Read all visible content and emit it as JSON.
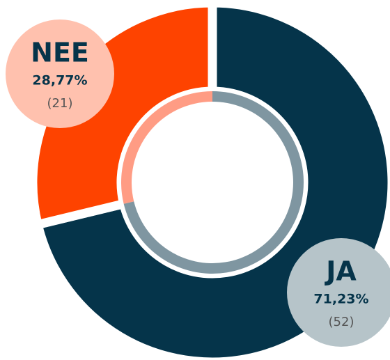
{
  "chart_data": {
    "type": "donut",
    "categories": [
      "JA",
      "NEE"
    ],
    "values": [
      71.23,
      28.77
    ],
    "value_labels": [
      "71,23%",
      "28,77%"
    ],
    "counts": [
      52,
      21
    ],
    "count_labels": [
      "(52)",
      "(21)"
    ],
    "colors": [
      "#05344a",
      "#fe4300"
    ],
    "inner_colors": [
      "#7f96a1",
      "#ff9c84"
    ],
    "label_colors": [
      "#b6c4c9",
      "#ffc1ae"
    ]
  }
}
